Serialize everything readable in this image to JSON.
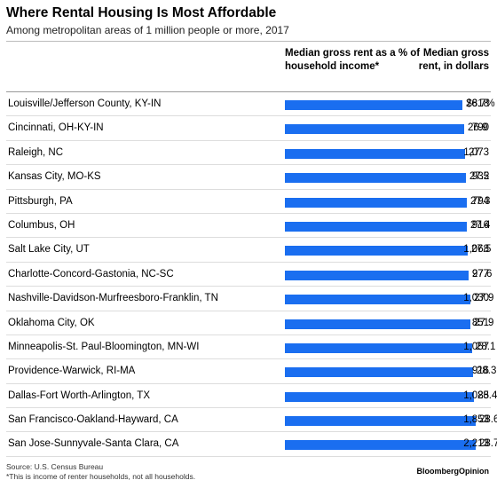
{
  "chart_data": {
    "type": "table",
    "title": "Where Rental Housing Is Most Affordable",
    "subtitle": "Among metropolitan areas of 1 million people or more, 2017",
    "columns": [
      "Median gross rent as a % of household income*",
      "Median gross rent, in dollars"
    ],
    "rows": [
      {
        "metro": "Louisville/Jefferson County, KY-IN",
        "pct": 26.7,
        "pct_label": "26.7%",
        "rent": "$818"
      },
      {
        "metro": "Cincinnati, OH-KY-IN",
        "pct": 26.9,
        "pct_label": "26.9",
        "rent": "790"
      },
      {
        "metro": "Raleigh, NC",
        "pct": 27,
        "pct_label": "27",
        "rent": "1,073"
      },
      {
        "metro": "Kansas City, MO-KS",
        "pct": 27.2,
        "pct_label": "27.2",
        "rent": "935"
      },
      {
        "metro": "Pittsburgh, PA",
        "pct": 27.3,
        "pct_label": "27.3",
        "rent": "794"
      },
      {
        "metro": "Columbus, OH",
        "pct": 27.4,
        "pct_label": "27.4",
        "rent": "916"
      },
      {
        "metro": "Salt Lake City, UT",
        "pct": 27.5,
        "pct_label": "27.5",
        "rent": "1,068"
      },
      {
        "metro": "Charlotte-Concord-Gastonia, NC-SC",
        "pct": 27.6,
        "pct_label": "27.6",
        "rent": "977"
      },
      {
        "metro": "Nashville-Davidson-Murfreesboro-Franklin, TN",
        "pct": 27.9,
        "pct_label": "27.9",
        "rent": "1,030"
      },
      {
        "metro": "Oklahoma City, OK",
        "pct": 27.9,
        "pct_label": "27.9",
        "rent": "851"
      },
      {
        "metro": "Minneapolis-St. Paul-Bloomington, MN-WI",
        "pct": 28.1,
        "pct_label": "28.1",
        "rent": "1,057"
      },
      {
        "metro": "Providence-Warwick, RI-MA",
        "pct": 28.3,
        "pct_label": "28.3",
        "rent": "916"
      },
      {
        "metro": "Dallas-Fort Worth-Arlington, TX",
        "pct": 28.4,
        "pct_label": "28.4",
        "rent": "1,085"
      },
      {
        "metro": "San Francisco-Oakland-Hayward, CA",
        "pct": 28.6,
        "pct_label": "28.6",
        "rent": "1,853"
      },
      {
        "metro": "San Jose-Sunnyvale-Santa Clara, CA",
        "pct": 28.7,
        "pct_label": "28.7",
        "rent": "2,213"
      }
    ],
    "bar_color": "#1a6ef0",
    "bar_axis_max": 40
  },
  "footer": {
    "source": "Source: U.S. Census Bureau",
    "note": "*This is income of renter households, not all households.",
    "brand": "BloombergOpinion"
  }
}
